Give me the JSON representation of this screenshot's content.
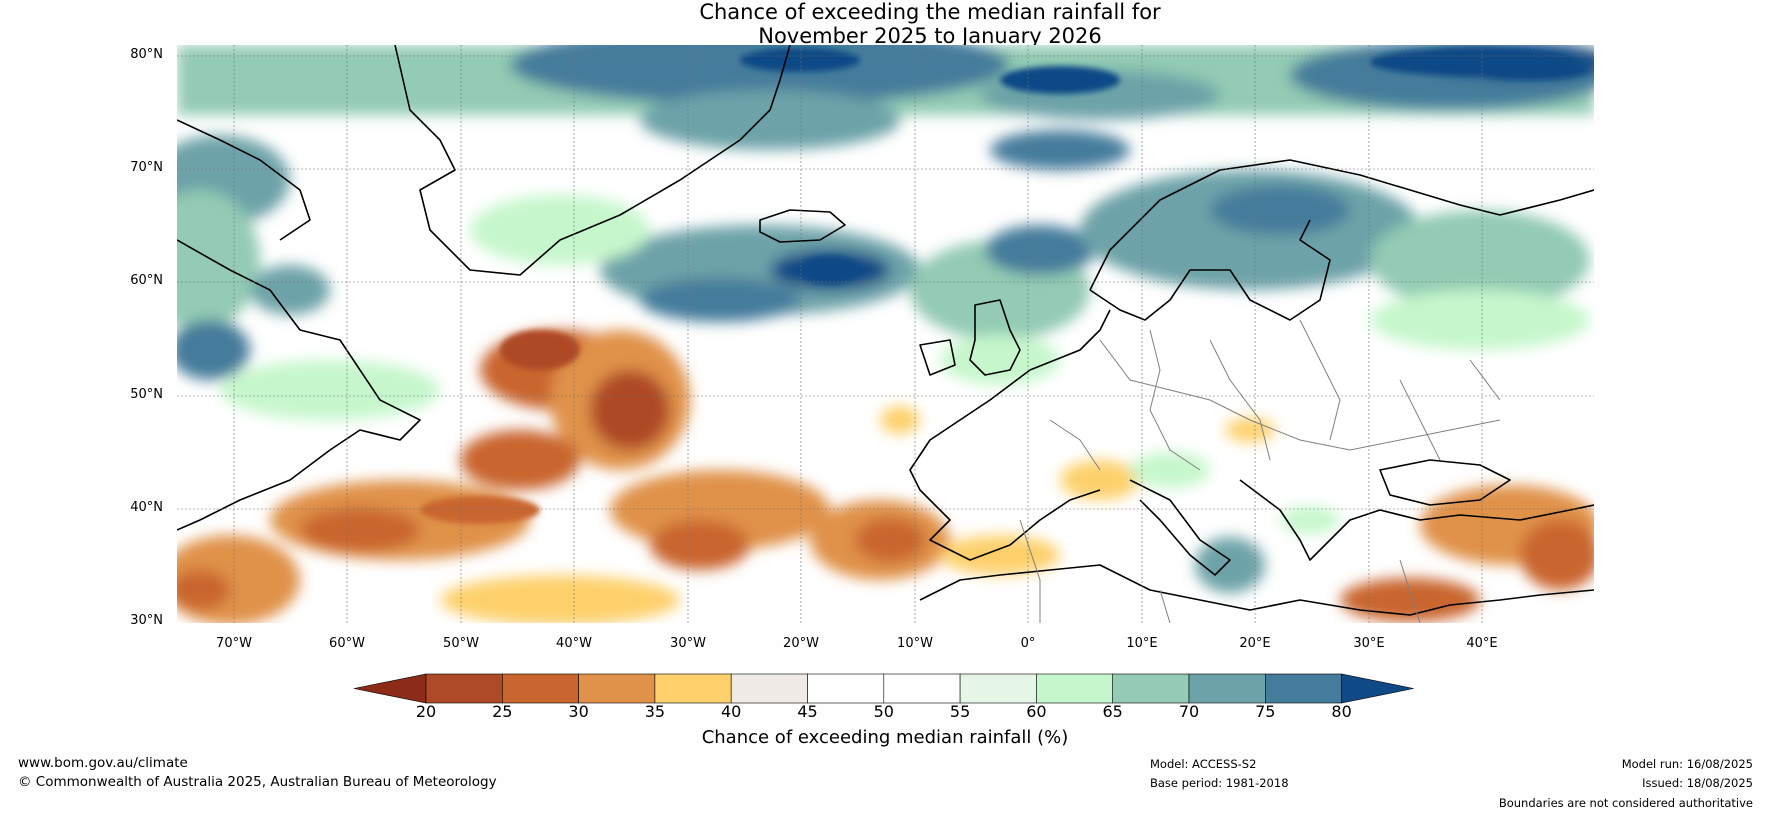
{
  "title": {
    "line1": "Chance of exceeding the median rainfall for",
    "line2": "November 2025 to January 2026"
  },
  "map": {
    "lat_labels": [
      "80°N",
      "70°N",
      "60°N",
      "50°N",
      "40°N",
      "30°N"
    ],
    "lon_labels": [
      "70°W",
      "60°W",
      "50°W",
      "40°W",
      "30°W",
      "20°W",
      "10°W",
      "0°",
      "10°E",
      "20°E",
      "30°E",
      "40°E"
    ],
    "lat_range": [
      30,
      80
    ],
    "lon_range": [
      -75,
      50
    ],
    "land_color": "#ffffff",
    "coast_color": "#000000",
    "border_color": "#808080",
    "grid": true
  },
  "colorbar": {
    "title": "Chance of exceeding median rainfall (%)",
    "ticks": [
      "20",
      "25",
      "30",
      "35",
      "40",
      "45",
      "50",
      "55",
      "60",
      "65",
      "70",
      "75",
      "80"
    ],
    "colors": [
      "#8c2c18",
      "#ae4a28",
      "#c9652f",
      "#e0924a",
      "#fdd06c",
      "#f0ebe6",
      "#ffffff",
      "#ffffff",
      "#e6f6e6",
      "#c6f7cc",
      "#93cbb4",
      "#6da3a8",
      "#457b9b",
      "#104a86"
    ]
  },
  "footer": {
    "website": "www.bom.gov.au/climate",
    "copyright": "© Commonwealth of Australia 2025, Australian Bureau of Meteorology",
    "model": "Model: ACCESS-S2",
    "base_period": "Base period: 1981-2018",
    "model_run": "Model run: 16/08/2025",
    "issued": "Issued: 18/08/2025",
    "disclaimer": "Boundaries are not considered authoritative"
  }
}
